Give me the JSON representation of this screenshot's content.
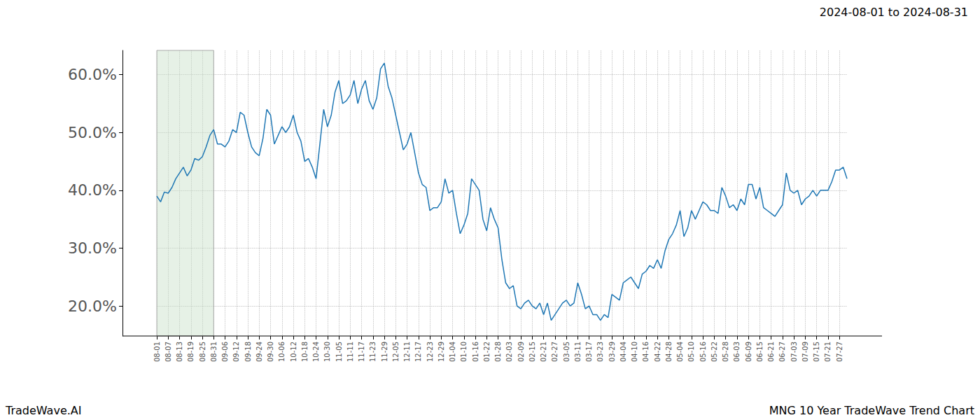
{
  "chart_data": {
    "type": "line",
    "title": "2024-08-01 to 2024-08-31",
    "annotations": [
      "TradeWave.AI",
      "MNG 10 Year TradeWave Trend Chart"
    ],
    "categories": [
      "08-01",
      null,
      null,
      "08-07",
      null,
      null,
      "08-13",
      null,
      null,
      "08-19",
      null,
      null,
      "08-25",
      null,
      null,
      "08-31",
      null,
      null,
      "09-06",
      null,
      null,
      "09-12",
      null,
      null,
      "09-18",
      null,
      null,
      "09-24",
      null,
      null,
      "09-30",
      null,
      null,
      "10-06",
      null,
      null,
      "10-12",
      null,
      null,
      "10-18",
      null,
      null,
      "10-24",
      null,
      null,
      "10-30",
      null,
      null,
      "11-05",
      null,
      null,
      "11-11",
      null,
      null,
      "11-17",
      null,
      null,
      "11-23",
      null,
      null,
      "11-29",
      null,
      null,
      "12-05",
      null,
      null,
      "12-11",
      null,
      null,
      "12-17",
      null,
      null,
      "12-23",
      null,
      null,
      "12-29",
      null,
      null,
      "01-04",
      null,
      null,
      "01-10",
      null,
      null,
      "01-16",
      null,
      null,
      "01-22",
      null,
      null,
      "01-28",
      null,
      null,
      "02-03",
      null,
      null,
      "02-09",
      null,
      null,
      "02-15",
      null,
      null,
      "02-21",
      null,
      null,
      "02-27",
      null,
      null,
      "03-05",
      null,
      null,
      "03-11",
      null,
      null,
      "03-17",
      null,
      null,
      "03-23",
      null,
      null,
      "03-29",
      null,
      null,
      "04-04",
      null,
      null,
      "04-10",
      null,
      null,
      "04-16",
      null,
      null,
      "04-22",
      null,
      null,
      "04-28",
      null,
      null,
      "05-04",
      null,
      null,
      "05-10",
      null,
      null,
      "05-16",
      null,
      null,
      "05-22",
      null,
      null,
      "05-28",
      null,
      null,
      "06-03",
      null,
      null,
      "06-09",
      null,
      null,
      "06-15",
      null,
      null,
      "06-21",
      null,
      null,
      "06-27",
      null,
      null,
      "07-03",
      null,
      null,
      "07-09",
      null,
      null,
      "07-15",
      null,
      null,
      "07-21",
      null,
      null,
      "07-27",
      null,
      null
    ],
    "values": [
      39,
      38,
      39.7,
      39.5,
      40.5,
      42,
      43,
      44,
      42.5,
      43.5,
      45.5,
      45.2,
      45.8,
      47.5,
      49.5,
      50.5,
      48,
      48,
      47.5,
      48.5,
      50.5,
      50,
      53.5,
      53,
      50,
      47.5,
      46.5,
      46,
      49,
      54,
      53,
      48,
      49.5,
      51,
      50,
      51,
      53,
      50,
      48.5,
      45,
      45.5,
      44,
      42,
      48,
      54,
      51,
      53,
      57,
      59,
      55,
      55.5,
      56.5,
      59,
      55,
      57.5,
      59,
      55.5,
      54,
      56,
      61,
      62,
      58,
      56,
      53,
      50,
      47,
      48,
      50,
      46.5,
      43,
      41,
      40.5,
      36.5,
      37,
      37,
      38,
      42,
      39.5,
      40,
      36,
      32.5,
      34,
      36,
      42,
      41,
      40,
      35,
      33,
      37,
      35,
      33.5,
      28,
      24,
      23,
      23.5,
      20,
      19.5,
      20.5,
      21,
      20,
      19.5,
      20.5,
      18.5,
      20.5,
      17.5,
      18.5,
      19.5,
      20.5,
      21,
      20,
      20.5,
      24,
      22,
      19.5,
      20,
      18.5,
      18.5,
      17.5,
      18.5,
      18,
      22,
      21.5,
      21,
      24,
      24.5,
      25,
      24,
      23,
      25.5,
      26,
      27,
      26.5,
      28,
      26.5,
      29.5,
      31.5,
      32.5,
      34,
      36.5,
      32,
      33.5,
      36.5,
      35,
      36.5,
      38,
      37.5,
      36.5,
      36.5,
      36,
      40.5,
      39,
      37,
      37.5,
      36.5,
      38.5,
      37.5,
      41,
      41,
      38.5,
      40.5,
      37,
      36.5,
      36,
      35.5,
      36.5,
      37.5,
      43,
      40,
      39.5,
      40,
      37.5,
      38.5,
      39,
      40,
      39,
      40,
      40,
      40,
      41.5,
      43.5,
      43.5,
      44,
      42
    ],
    "shaded_range": [
      "08-01",
      "08-31"
    ],
    "color": "#1f77b4",
    "line_style": "solid",
    "grid": true,
    "ylim": [
      14.8,
      64.2
    ],
    "yticks": [
      {
        "value": 20,
        "label": "20.0%"
      },
      {
        "value": 30,
        "label": "30.0%"
      },
      {
        "value": 40,
        "label": "40.0%"
      },
      {
        "value": 50,
        "label": "50.0%"
      },
      {
        "value": 60,
        "label": "60.0%"
      }
    ]
  }
}
